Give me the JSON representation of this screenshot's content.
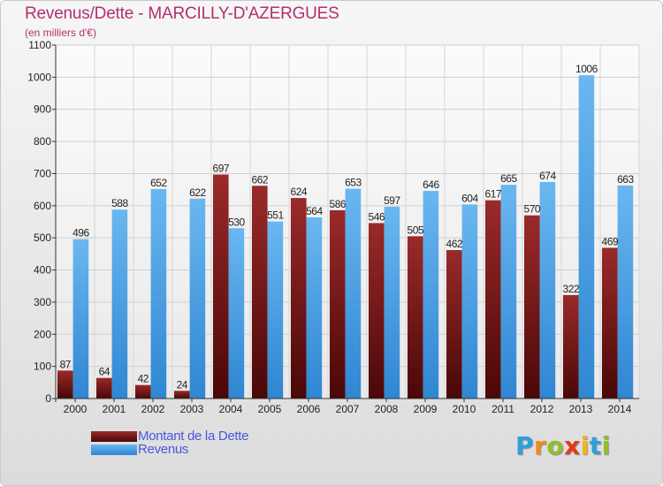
{
  "title": "Revenus/Dette - MARCILLY-D'AZERGUES",
  "subtitle": "(en milliers d'€)",
  "legend": {
    "debt": "Montant de la Dette",
    "revenue": "Revenus"
  },
  "brand": {
    "letters": [
      "P",
      "r",
      "o",
      "x",
      "i",
      "t",
      "i"
    ],
    "colors": [
      "#2f9fd8",
      "#f28a1c",
      "#8fbf2a",
      "#e5391f",
      "#f2b51c",
      "#2f9fd8",
      "#8fbf2a"
    ]
  },
  "colors": {
    "debt_top": "#9a2a2a",
    "debt_bottom": "#4a0707",
    "revenue_top": "#6ab7f0",
    "revenue_bottom": "#2f86d2",
    "title": "#b4306e"
  },
  "chart_data": {
    "type": "bar",
    "categories": [
      "2000",
      "2001",
      "2002",
      "2003",
      "2004",
      "2005",
      "2006",
      "2007",
      "2008",
      "2009",
      "2010",
      "2011",
      "2012",
      "2013",
      "2014"
    ],
    "series": [
      {
        "name": "Montant de la Dette",
        "values": [
          87,
          64,
          42,
          24,
          697,
          662,
          624,
          586,
          546,
          505,
          462,
          617,
          570,
          322,
          469
        ]
      },
      {
        "name": "Revenus",
        "values": [
          496,
          588,
          652,
          622,
          530,
          551,
          564,
          653,
          597,
          646,
          604,
          665,
          674,
          1006,
          663
        ]
      }
    ],
    "yticks": [
      "0",
      "100",
      "200",
      "300",
      "400",
      "500",
      "600",
      "700",
      "800",
      "900",
      "1000",
      "1100"
    ],
    "ylim": [
      0,
      1100
    ],
    "grid": true,
    "legend_position": "bottom-left"
  }
}
